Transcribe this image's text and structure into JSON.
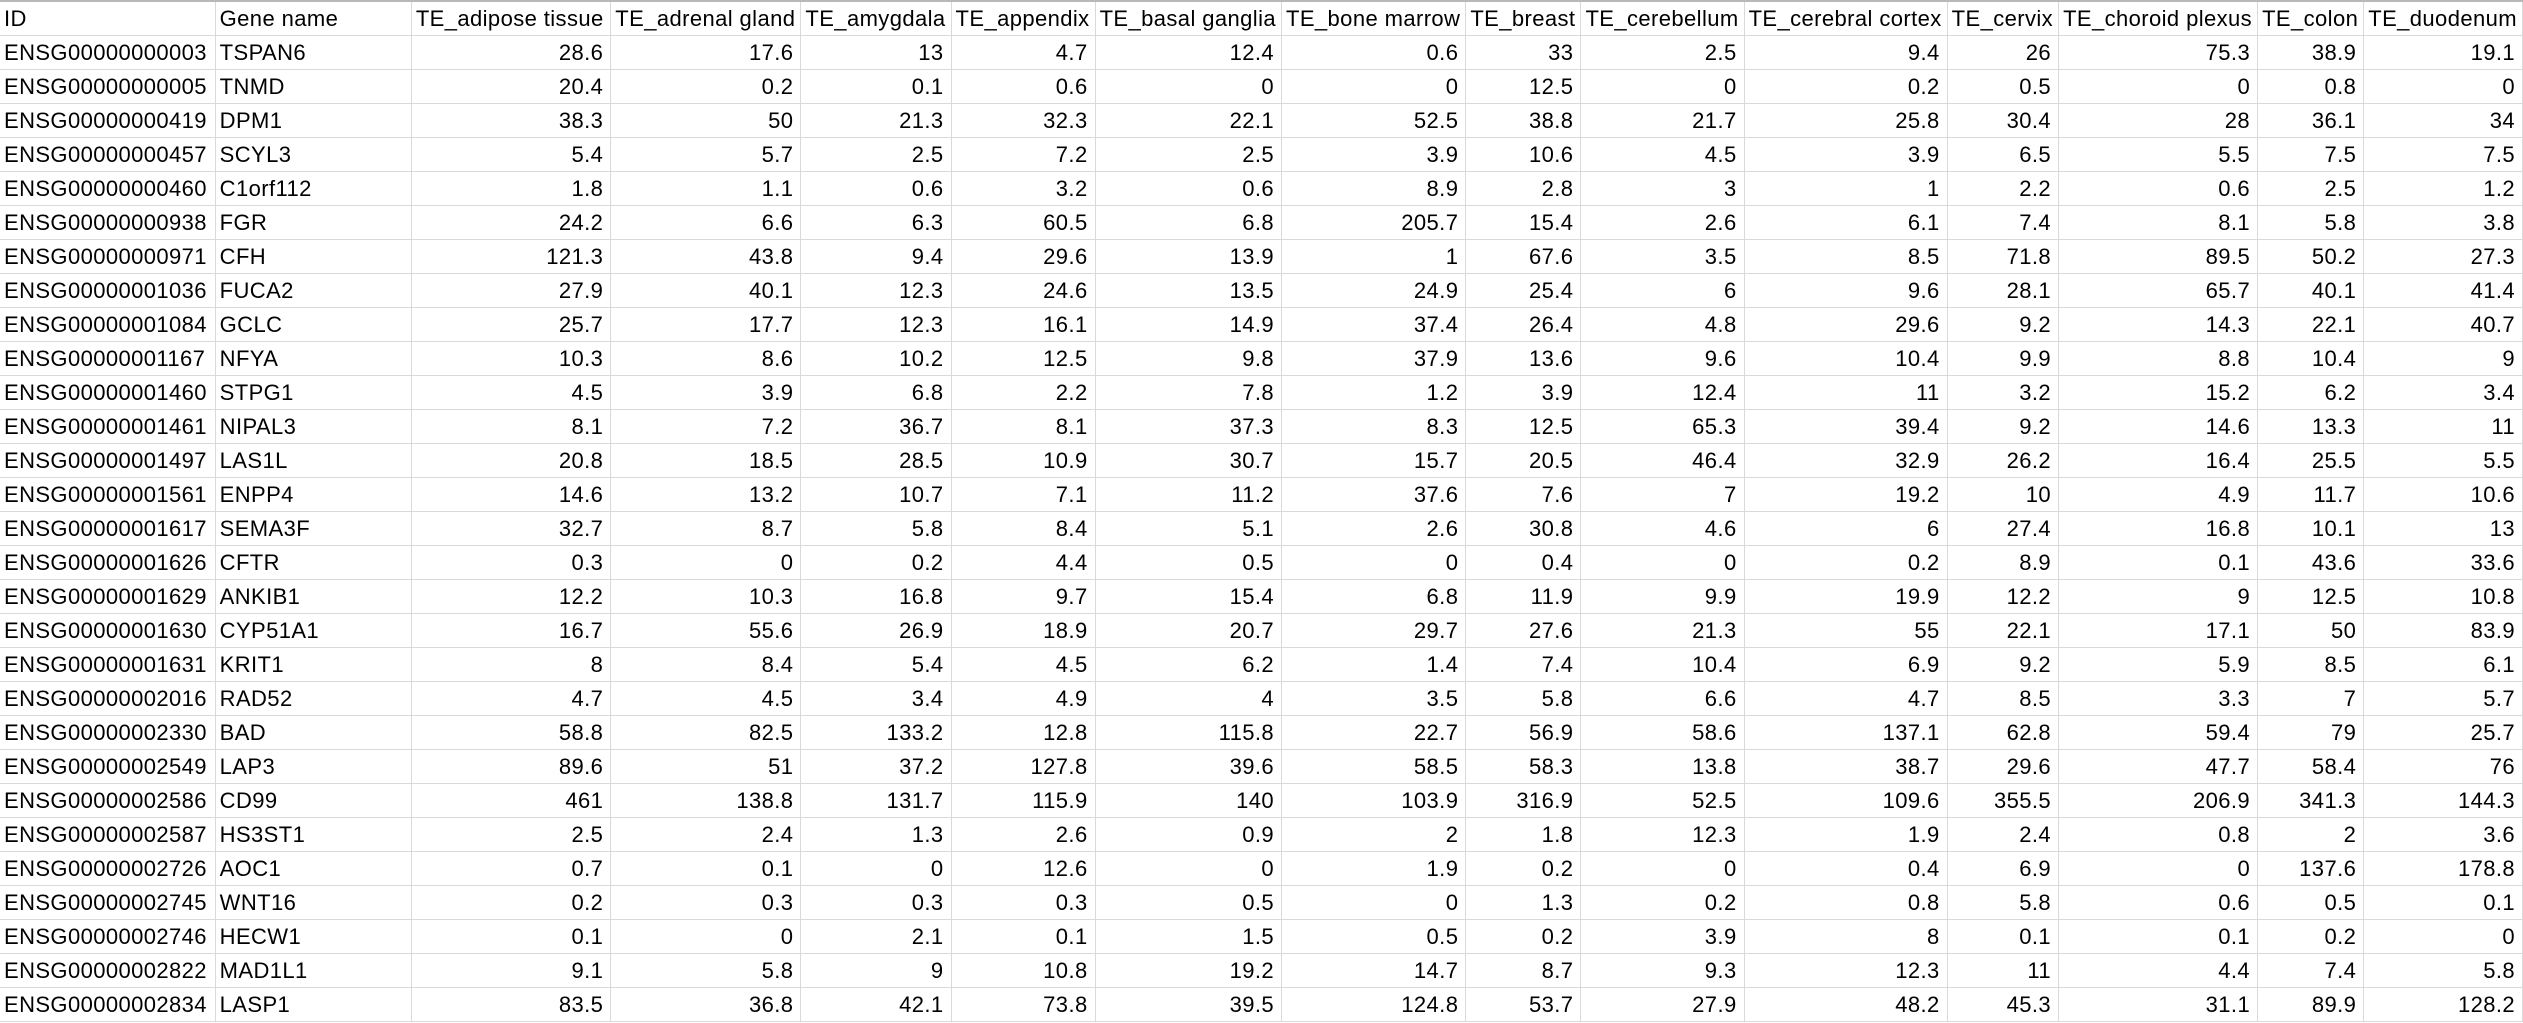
{
  "columns": [
    "ID",
    "Gene name",
    "TE_adipose tissue",
    "TE_adrenal gland",
    "TE_amygdala",
    "TE_appendix",
    "TE_basal ganglia",
    "TE_bone marrow",
    "TE_breast",
    "TE_cerebellum",
    "TE_cerebral cortex",
    "TE_cervix",
    "TE_choroid plexus",
    "TE_colon",
    "TE_duodenum"
  ],
  "rows": [
    [
      "ENSG00000000003",
      "TSPAN6",
      "28.6",
      "17.6",
      "13",
      "4.7",
      "12.4",
      "0.6",
      "33",
      "2.5",
      "9.4",
      "26",
      "75.3",
      "38.9",
      "19.1"
    ],
    [
      "ENSG00000000005",
      "TNMD",
      "20.4",
      "0.2",
      "0.1",
      "0.6",
      "0",
      "0",
      "12.5",
      "0",
      "0.2",
      "0.5",
      "0",
      "0.8",
      "0"
    ],
    [
      "ENSG00000000419",
      "DPM1",
      "38.3",
      "50",
      "21.3",
      "32.3",
      "22.1",
      "52.5",
      "38.8",
      "21.7",
      "25.8",
      "30.4",
      "28",
      "36.1",
      "34"
    ],
    [
      "ENSG00000000457",
      "SCYL3",
      "5.4",
      "5.7",
      "2.5",
      "7.2",
      "2.5",
      "3.9",
      "10.6",
      "4.5",
      "3.9",
      "6.5",
      "5.5",
      "7.5",
      "7.5"
    ],
    [
      "ENSG00000000460",
      "C1orf112",
      "1.8",
      "1.1",
      "0.6",
      "3.2",
      "0.6",
      "8.9",
      "2.8",
      "3",
      "1",
      "2.2",
      "0.6",
      "2.5",
      "1.2"
    ],
    [
      "ENSG00000000938",
      "FGR",
      "24.2",
      "6.6",
      "6.3",
      "60.5",
      "6.8",
      "205.7",
      "15.4",
      "2.6",
      "6.1",
      "7.4",
      "8.1",
      "5.8",
      "3.8"
    ],
    [
      "ENSG00000000971",
      "CFH",
      "121.3",
      "43.8",
      "9.4",
      "29.6",
      "13.9",
      "1",
      "67.6",
      "3.5",
      "8.5",
      "71.8",
      "89.5",
      "50.2",
      "27.3"
    ],
    [
      "ENSG00000001036",
      "FUCA2",
      "27.9",
      "40.1",
      "12.3",
      "24.6",
      "13.5",
      "24.9",
      "25.4",
      "6",
      "9.6",
      "28.1",
      "65.7",
      "40.1",
      "41.4"
    ],
    [
      "ENSG00000001084",
      "GCLC",
      "25.7",
      "17.7",
      "12.3",
      "16.1",
      "14.9",
      "37.4",
      "26.4",
      "4.8",
      "29.6",
      "9.2",
      "14.3",
      "22.1",
      "40.7"
    ],
    [
      "ENSG00000001167",
      "NFYA",
      "10.3",
      "8.6",
      "10.2",
      "12.5",
      "9.8",
      "37.9",
      "13.6",
      "9.6",
      "10.4",
      "9.9",
      "8.8",
      "10.4",
      "9"
    ],
    [
      "ENSG00000001460",
      "STPG1",
      "4.5",
      "3.9",
      "6.8",
      "2.2",
      "7.8",
      "1.2",
      "3.9",
      "12.4",
      "11",
      "3.2",
      "15.2",
      "6.2",
      "3.4"
    ],
    [
      "ENSG00000001461",
      "NIPAL3",
      "8.1",
      "7.2",
      "36.7",
      "8.1",
      "37.3",
      "8.3",
      "12.5",
      "65.3",
      "39.4",
      "9.2",
      "14.6",
      "13.3",
      "11"
    ],
    [
      "ENSG00000001497",
      "LAS1L",
      "20.8",
      "18.5",
      "28.5",
      "10.9",
      "30.7",
      "15.7",
      "20.5",
      "46.4",
      "32.9",
      "26.2",
      "16.4",
      "25.5",
      "5.5"
    ],
    [
      "ENSG00000001561",
      "ENPP4",
      "14.6",
      "13.2",
      "10.7",
      "7.1",
      "11.2",
      "37.6",
      "7.6",
      "7",
      "19.2",
      "10",
      "4.9",
      "11.7",
      "10.6"
    ],
    [
      "ENSG00000001617",
      "SEMA3F",
      "32.7",
      "8.7",
      "5.8",
      "8.4",
      "5.1",
      "2.6",
      "30.8",
      "4.6",
      "6",
      "27.4",
      "16.8",
      "10.1",
      "13"
    ],
    [
      "ENSG00000001626",
      "CFTR",
      "0.3",
      "0",
      "0.2",
      "4.4",
      "0.5",
      "0",
      "0.4",
      "0",
      "0.2",
      "8.9",
      "0.1",
      "43.6",
      "33.6"
    ],
    [
      "ENSG00000001629",
      "ANKIB1",
      "12.2",
      "10.3",
      "16.8",
      "9.7",
      "15.4",
      "6.8",
      "11.9",
      "9.9",
      "19.9",
      "12.2",
      "9",
      "12.5",
      "10.8"
    ],
    [
      "ENSG00000001630",
      "CYP51A1",
      "16.7",
      "55.6",
      "26.9",
      "18.9",
      "20.7",
      "29.7",
      "27.6",
      "21.3",
      "55",
      "22.1",
      "17.1",
      "50",
      "83.9"
    ],
    [
      "ENSG00000001631",
      "KRIT1",
      "8",
      "8.4",
      "5.4",
      "4.5",
      "6.2",
      "1.4",
      "7.4",
      "10.4",
      "6.9",
      "9.2",
      "5.9",
      "8.5",
      "6.1"
    ],
    [
      "ENSG00000002016",
      "RAD52",
      "4.7",
      "4.5",
      "3.4",
      "4.9",
      "4",
      "3.5",
      "5.8",
      "6.6",
      "4.7",
      "8.5",
      "3.3",
      "7",
      "5.7"
    ],
    [
      "ENSG00000002330",
      "BAD",
      "58.8",
      "82.5",
      "133.2",
      "12.8",
      "115.8",
      "22.7",
      "56.9",
      "58.6",
      "137.1",
      "62.8",
      "59.4",
      "79",
      "25.7"
    ],
    [
      "ENSG00000002549",
      "LAP3",
      "89.6",
      "51",
      "37.2",
      "127.8",
      "39.6",
      "58.5",
      "58.3",
      "13.8",
      "38.7",
      "29.6",
      "47.7",
      "58.4",
      "76"
    ],
    [
      "ENSG00000002586",
      "CD99",
      "461",
      "138.8",
      "131.7",
      "115.9",
      "140",
      "103.9",
      "316.9",
      "52.5",
      "109.6",
      "355.5",
      "206.9",
      "341.3",
      "144.3"
    ],
    [
      "ENSG00000002587",
      "HS3ST1",
      "2.5",
      "2.4",
      "1.3",
      "2.6",
      "0.9",
      "2",
      "1.8",
      "12.3",
      "1.9",
      "2.4",
      "0.8",
      "2",
      "3.6"
    ],
    [
      "ENSG00000002726",
      "AOC1",
      "0.7",
      "0.1",
      "0",
      "12.6",
      "0",
      "1.9",
      "0.2",
      "0",
      "0.4",
      "6.9",
      "0",
      "137.6",
      "178.8"
    ],
    [
      "ENSG00000002745",
      "WNT16",
      "0.2",
      "0.3",
      "0.3",
      "0.3",
      "0.5",
      "0",
      "1.3",
      "0.2",
      "0.8",
      "5.8",
      "0.6",
      "0.5",
      "0.1"
    ],
    [
      "ENSG00000002746",
      "HECW1",
      "0.1",
      "0",
      "2.1",
      "0.1",
      "1.5",
      "0.5",
      "0.2",
      "3.9",
      "8",
      "0.1",
      "0.1",
      "0.2",
      "0"
    ],
    [
      "ENSG00000002822",
      "MAD1L1",
      "9.1",
      "5.8",
      "9",
      "10.8",
      "19.2",
      "14.7",
      "8.7",
      "9.3",
      "12.3",
      "11",
      "4.4",
      "7.4",
      "5.8"
    ],
    [
      "ENSG00000002834",
      "LASP1",
      "83.5",
      "36.8",
      "42.1",
      "73.8",
      "39.5",
      "124.8",
      "53.7",
      "27.9",
      "48.2",
      "45.3",
      "31.1",
      "89.9",
      "128.2"
    ]
  ]
}
